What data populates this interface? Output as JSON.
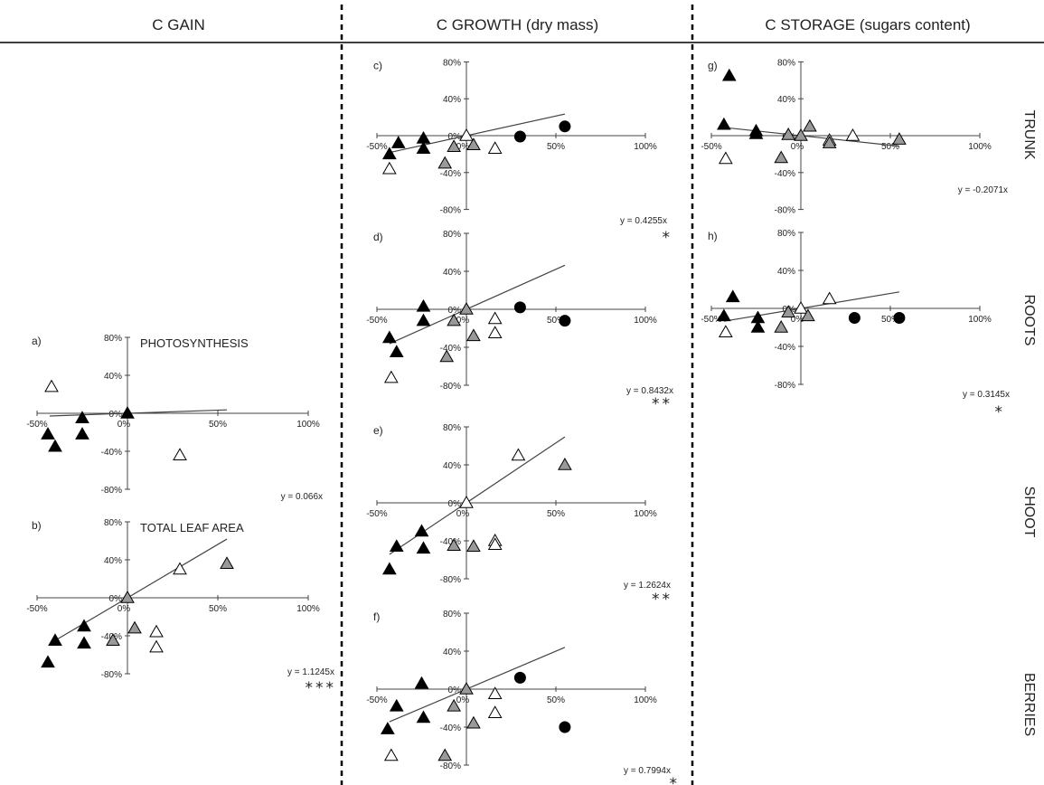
{
  "columns": [
    "C GAIN",
    "C GROWTH (dry mass)",
    "C STORAGE (sugars content)"
  ],
  "rows": [
    "TRUNK",
    "ROOTS",
    "SHOOT",
    "BERRIES"
  ],
  "colors": {
    "black": "#000000",
    "grey": "#999999",
    "white": "#ffffff",
    "line": "#444444"
  },
  "chart_data": [
    {
      "id": "a",
      "panel_label": "a)",
      "title": "PHOTOSYNTHESIS",
      "type": "scatter",
      "x_ticks": [
        "-50%",
        "0%",
        "50%",
        "100%"
      ],
      "y_ticks": [
        "80%",
        "40%",
        "0%",
        "-40%",
        "-80%"
      ],
      "xlim": [
        -50,
        100
      ],
      "ylim": [
        -80,
        80
      ],
      "equation": "y = 0.066x",
      "significance": "",
      "slope": 0.066,
      "points": [
        {
          "x": -42,
          "y": 28,
          "shape": "triangle",
          "fill": "white"
        },
        {
          "x": -44,
          "y": -22,
          "shape": "triangle",
          "fill": "black"
        },
        {
          "x": -40,
          "y": -35,
          "shape": "triangle",
          "fill": "black"
        },
        {
          "x": -25,
          "y": -5,
          "shape": "triangle",
          "fill": "black"
        },
        {
          "x": -25,
          "y": -22,
          "shape": "triangle",
          "fill": "black"
        },
        {
          "x": 0,
          "y": 0,
          "shape": "triangle",
          "fill": "black"
        },
        {
          "x": 29,
          "y": -44,
          "shape": "triangle",
          "fill": "white"
        }
      ]
    },
    {
      "id": "b",
      "panel_label": "b)",
      "title": "TOTAL LEAF AREA",
      "type": "scatter",
      "x_ticks": [
        "-50%",
        "0%",
        "50%",
        "100%"
      ],
      "y_ticks": [
        "80%",
        "40%",
        "0%",
        "-40%",
        "-80%"
      ],
      "xlim": [
        -50,
        100
      ],
      "ylim": [
        -80,
        80
      ],
      "equation": "y = 1.1245x",
      "significance": "***",
      "slope": 1.1245,
      "points": [
        {
          "x": -40,
          "y": -45,
          "shape": "triangle",
          "fill": "black"
        },
        {
          "x": -44,
          "y": -68,
          "shape": "triangle",
          "fill": "black"
        },
        {
          "x": -24,
          "y": -30,
          "shape": "triangle",
          "fill": "black"
        },
        {
          "x": -24,
          "y": -48,
          "shape": "triangle",
          "fill": "black"
        },
        {
          "x": -8,
          "y": -45,
          "shape": "triangle",
          "fill": "grey"
        },
        {
          "x": 4,
          "y": -32,
          "shape": "triangle",
          "fill": "grey"
        },
        {
          "x": 0,
          "y": 0,
          "shape": "triangle",
          "fill": "grey"
        },
        {
          "x": 16,
          "y": -36,
          "shape": "triangle",
          "fill": "white"
        },
        {
          "x": 16,
          "y": -52,
          "shape": "triangle",
          "fill": "white"
        },
        {
          "x": 29,
          "y": 30,
          "shape": "triangle",
          "fill": "white"
        },
        {
          "x": 55,
          "y": 36,
          "shape": "triangle",
          "fill": "grey"
        }
      ]
    },
    {
      "id": "c",
      "panel_label": "c)",
      "title": "",
      "type": "scatter",
      "x_ticks": [
        "-50%",
        "0%",
        "50%",
        "100%"
      ],
      "y_ticks": [
        "80%",
        "40%",
        "0%",
        "-40%",
        "-80%"
      ],
      "xlim": [
        -50,
        100
      ],
      "ylim": [
        -80,
        80
      ],
      "equation": "y = 0.4255x",
      "significance": "*",
      "slope": 0.4255,
      "points": [
        {
          "x": -43,
          "y": -20,
          "shape": "triangle",
          "fill": "black"
        },
        {
          "x": -38,
          "y": -8,
          "shape": "triangle",
          "fill": "black"
        },
        {
          "x": -24,
          "y": -3,
          "shape": "triangle",
          "fill": "black"
        },
        {
          "x": -24,
          "y": -14,
          "shape": "triangle",
          "fill": "black"
        },
        {
          "x": -43,
          "y": -36,
          "shape": "triangle",
          "fill": "white"
        },
        {
          "x": -12,
          "y": -30,
          "shape": "triangle",
          "fill": "grey"
        },
        {
          "x": -7,
          "y": -12,
          "shape": "triangle",
          "fill": "grey"
        },
        {
          "x": 0,
          "y": 0,
          "shape": "triangle",
          "fill": "white"
        },
        {
          "x": 4,
          "y": -10,
          "shape": "triangle",
          "fill": "grey"
        },
        {
          "x": 16,
          "y": -14,
          "shape": "triangle",
          "fill": "white"
        },
        {
          "x": 30,
          "y": -1,
          "shape": "circle",
          "fill": "black"
        },
        {
          "x": 55,
          "y": 10,
          "shape": "circle",
          "fill": "black"
        }
      ]
    },
    {
      "id": "d",
      "panel_label": "d)",
      "title": "",
      "type": "scatter",
      "x_ticks": [
        "-50%",
        "0%",
        "50%",
        "100%"
      ],
      "y_ticks": [
        "80%",
        "40%",
        "0%",
        "-40%",
        "-80%"
      ],
      "xlim": [
        -50,
        100
      ],
      "ylim": [
        -80,
        80
      ],
      "equation": "y = 0.8432x",
      "significance": "**",
      "slope": 0.8432,
      "points": [
        {
          "x": -43,
          "y": -30,
          "shape": "triangle",
          "fill": "black"
        },
        {
          "x": -39,
          "y": -45,
          "shape": "triangle",
          "fill": "black"
        },
        {
          "x": -24,
          "y": 3,
          "shape": "triangle",
          "fill": "black"
        },
        {
          "x": -24,
          "y": -12,
          "shape": "triangle",
          "fill": "black"
        },
        {
          "x": -42,
          "y": -72,
          "shape": "triangle",
          "fill": "white"
        },
        {
          "x": -11,
          "y": -50,
          "shape": "triangle",
          "fill": "grey"
        },
        {
          "x": -7,
          "y": -12,
          "shape": "triangle",
          "fill": "grey"
        },
        {
          "x": 0,
          "y": 0,
          "shape": "triangle",
          "fill": "grey"
        },
        {
          "x": 4,
          "y": -28,
          "shape": "triangle",
          "fill": "grey"
        },
        {
          "x": 16,
          "y": -10,
          "shape": "triangle",
          "fill": "white"
        },
        {
          "x": 16,
          "y": -25,
          "shape": "triangle",
          "fill": "white"
        },
        {
          "x": 30,
          "y": 2,
          "shape": "circle",
          "fill": "black"
        },
        {
          "x": 55,
          "y": -12,
          "shape": "circle",
          "fill": "black"
        }
      ]
    },
    {
      "id": "e",
      "panel_label": "e)",
      "title": "",
      "type": "scatter",
      "x_ticks": [
        "-50%",
        "0%",
        "50%",
        "100%"
      ],
      "y_ticks": [
        "80%",
        "40%",
        "0%",
        "-40%",
        "-80%"
      ],
      "xlim": [
        -50,
        100
      ],
      "ylim": [
        -80,
        80
      ],
      "equation": "y = 1.2624x",
      "significance": "**",
      "slope": 1.2624,
      "points": [
        {
          "x": -43,
          "y": -70,
          "shape": "triangle",
          "fill": "black"
        },
        {
          "x": -39,
          "y": -46,
          "shape": "triangle",
          "fill": "black"
        },
        {
          "x": -25,
          "y": -30,
          "shape": "triangle",
          "fill": "black"
        },
        {
          "x": -24,
          "y": -48,
          "shape": "triangle",
          "fill": "black"
        },
        {
          "x": -7,
          "y": -45,
          "shape": "triangle",
          "fill": "grey"
        },
        {
          "x": 0,
          "y": 0,
          "shape": "triangle",
          "fill": "white"
        },
        {
          "x": 4,
          "y": -46,
          "shape": "triangle",
          "fill": "grey"
        },
        {
          "x": 16,
          "y": -40,
          "shape": "triangle",
          "fill": "white"
        },
        {
          "x": 16,
          "y": -44,
          "shape": "triangle",
          "fill": "white"
        },
        {
          "x": 29,
          "y": 50,
          "shape": "triangle",
          "fill": "white"
        },
        {
          "x": 55,
          "y": 40,
          "shape": "triangle",
          "fill": "grey"
        }
      ]
    },
    {
      "id": "f",
      "panel_label": "f)",
      "title": "",
      "type": "scatter",
      "x_ticks": [
        "-50%",
        "0%",
        "50%",
        "100%"
      ],
      "y_ticks": [
        "80%",
        "40%",
        "0%",
        "-40%",
        "-80%"
      ],
      "xlim": [
        -50,
        100
      ],
      "ylim": [
        -80,
        80
      ],
      "equation": "y = 0.7994x",
      "significance": "*",
      "slope": 0.7994,
      "points": [
        {
          "x": -44,
          "y": -42,
          "shape": "triangle",
          "fill": "black"
        },
        {
          "x": -39,
          "y": -18,
          "shape": "triangle",
          "fill": "black"
        },
        {
          "x": -25,
          "y": 6,
          "shape": "triangle",
          "fill": "black"
        },
        {
          "x": -24,
          "y": -30,
          "shape": "triangle",
          "fill": "black"
        },
        {
          "x": -42,
          "y": -70,
          "shape": "triangle",
          "fill": "white"
        },
        {
          "x": -12,
          "y": -70,
          "shape": "triangle",
          "fill": "grey"
        },
        {
          "x": -7,
          "y": -18,
          "shape": "triangle",
          "fill": "grey"
        },
        {
          "x": 0,
          "y": 0,
          "shape": "triangle",
          "fill": "grey"
        },
        {
          "x": 4,
          "y": -36,
          "shape": "triangle",
          "fill": "grey"
        },
        {
          "x": 16,
          "y": -5,
          "shape": "triangle",
          "fill": "white"
        },
        {
          "x": 16,
          "y": -25,
          "shape": "triangle",
          "fill": "white"
        },
        {
          "x": 30,
          "y": 12,
          "shape": "circle",
          "fill": "black"
        },
        {
          "x": 55,
          "y": -40,
          "shape": "circle",
          "fill": "black"
        }
      ]
    },
    {
      "id": "g",
      "panel_label": "g)",
      "title": "",
      "type": "scatter",
      "x_ticks": [
        "-50%",
        "0%",
        "50%",
        "100%"
      ],
      "y_ticks": [
        "80%",
        "40%",
        "0%",
        "-40%",
        "-80%"
      ],
      "xlim": [
        -50,
        100
      ],
      "ylim": [
        -80,
        80
      ],
      "equation": "y = -0.2071x",
      "significance": "",
      "slope": -0.2071,
      "points": [
        {
          "x": -40,
          "y": 65,
          "shape": "triangle",
          "fill": "black"
        },
        {
          "x": -43,
          "y": 12,
          "shape": "triangle",
          "fill": "black"
        },
        {
          "x": -25,
          "y": 5,
          "shape": "triangle",
          "fill": "black"
        },
        {
          "x": -25,
          "y": 2,
          "shape": "triangle",
          "fill": "black"
        },
        {
          "x": -42,
          "y": -25,
          "shape": "triangle",
          "fill": "white"
        },
        {
          "x": -11,
          "y": -24,
          "shape": "triangle",
          "fill": "grey"
        },
        {
          "x": -7,
          "y": 1,
          "shape": "triangle",
          "fill": "grey"
        },
        {
          "x": 0,
          "y": 0,
          "shape": "triangle",
          "fill": "grey"
        },
        {
          "x": 5,
          "y": 10,
          "shape": "triangle",
          "fill": "grey"
        },
        {
          "x": 16,
          "y": -5,
          "shape": "triangle",
          "fill": "white"
        },
        {
          "x": 16,
          "y": -8,
          "shape": "triangle",
          "fill": "grey"
        },
        {
          "x": 29,
          "y": 0,
          "shape": "triangle",
          "fill": "white"
        },
        {
          "x": 55,
          "y": -4,
          "shape": "triangle",
          "fill": "grey"
        }
      ]
    },
    {
      "id": "h",
      "panel_label": "h)",
      "title": "",
      "type": "scatter",
      "x_ticks": [
        "-50%",
        "0%",
        "50%",
        "100%"
      ],
      "y_ticks": [
        "80%",
        "40%",
        "0%",
        "-40%",
        "-80%"
      ],
      "xlim": [
        -50,
        100
      ],
      "ylim": [
        -80,
        80
      ],
      "equation": "y = 0.3145x",
      "significance": "*",
      "slope": 0.3145,
      "points": [
        {
          "x": -43,
          "y": -8,
          "shape": "triangle",
          "fill": "black"
        },
        {
          "x": -38,
          "y": 12,
          "shape": "triangle",
          "fill": "black"
        },
        {
          "x": -24,
          "y": -10,
          "shape": "triangle",
          "fill": "black"
        },
        {
          "x": -24,
          "y": -20,
          "shape": "triangle",
          "fill": "black"
        },
        {
          "x": -42,
          "y": -25,
          "shape": "triangle",
          "fill": "white"
        },
        {
          "x": -11,
          "y": -20,
          "shape": "triangle",
          "fill": "grey"
        },
        {
          "x": -7,
          "y": -4,
          "shape": "triangle",
          "fill": "grey"
        },
        {
          "x": 0,
          "y": 0,
          "shape": "triangle",
          "fill": "white"
        },
        {
          "x": 4,
          "y": -8,
          "shape": "triangle",
          "fill": "grey"
        },
        {
          "x": 16,
          "y": 10,
          "shape": "triangle",
          "fill": "white"
        },
        {
          "x": 30,
          "y": -10,
          "shape": "circle",
          "fill": "black"
        },
        {
          "x": 55,
          "y": -10,
          "shape": "circle",
          "fill": "black"
        }
      ]
    }
  ]
}
